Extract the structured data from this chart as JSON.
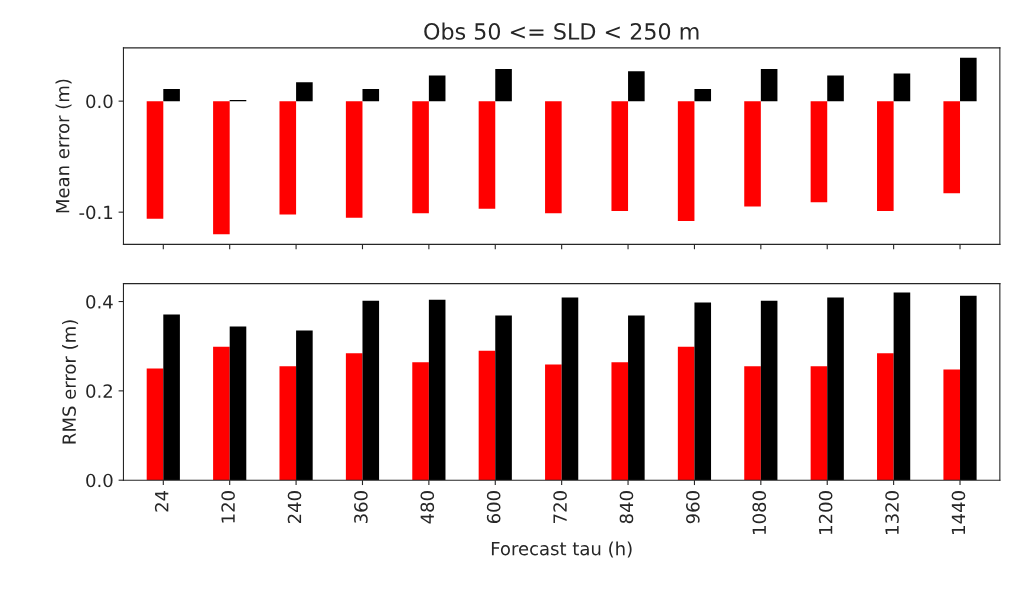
{
  "chart_data": [
    {
      "type": "bar",
      "title": "Obs 50 <= SLD < 250 m",
      "ylabel": "Mean error (m)",
      "categories": [
        "24",
        "120",
        "240",
        "360",
        "480",
        "600",
        "720",
        "840",
        "960",
        "1080",
        "1200",
        "1320",
        "1440"
      ],
      "ylim": [
        -0.129,
        0.048
      ],
      "yticks": [
        {
          "value": -0.1,
          "label": "-0.1"
        },
        {
          "value": 0.0,
          "label": "0.0"
        }
      ],
      "tick_labels": "y",
      "grid": false,
      "series": [
        {
          "color": "#ff0000",
          "values": [
            -0.106,
            -0.12,
            -0.102,
            -0.105,
            -0.101,
            -0.097,
            -0.101,
            -0.099,
            -0.108,
            -0.095,
            -0.091,
            -0.099,
            -0.083
          ]
        },
        {
          "color": "#000000",
          "values": [
            0.011,
            0.001,
            0.017,
            0.011,
            0.023,
            0.029,
            null,
            0.027,
            0.011,
            0.029,
            0.023,
            0.025,
            0.039
          ]
        }
      ]
    },
    {
      "type": "bar",
      "xlabel": "Forecast tau (h)",
      "ylabel": "RMS error (m)",
      "categories": [
        "24",
        "120",
        "240",
        "360",
        "480",
        "600",
        "720",
        "840",
        "960",
        "1080",
        "1200",
        "1320",
        "1440"
      ],
      "ylim": [
        0,
        0.44
      ],
      "yticks": [
        {
          "value": 0.0,
          "label": "0.0"
        },
        {
          "value": 0.2,
          "label": "0.2"
        },
        {
          "value": 0.4,
          "label": "0.4"
        }
      ],
      "grid": false,
      "series": [
        {
          "color": "#ff0000",
          "values": [
            0.25,
            0.299,
            0.255,
            0.284,
            0.264,
            0.29,
            0.259,
            0.264,
            0.299,
            0.255,
            0.255,
            0.284,
            0.248
          ]
        },
        {
          "color": "#000000",
          "values": [
            0.371,
            0.344,
            0.335,
            0.402,
            0.404,
            0.369,
            0.409,
            0.369,
            0.398,
            0.402,
            0.409,
            0.42,
            0.413
          ]
        }
      ]
    }
  ]
}
